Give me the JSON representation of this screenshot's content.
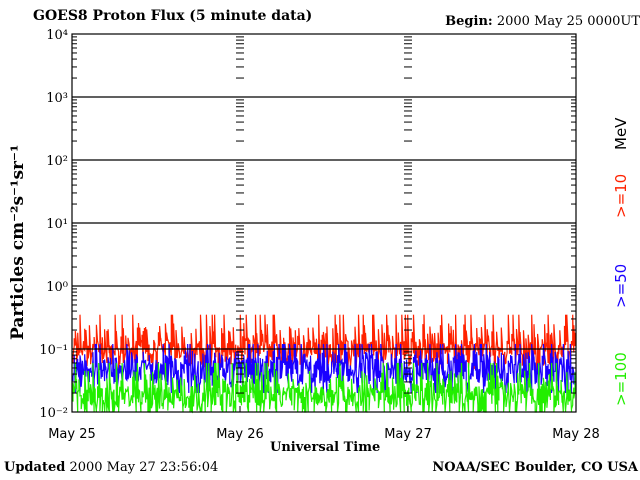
{
  "header": {
    "title": "GOES8 Proton Flux (5 minute data)",
    "begin_label": "Begin:",
    "begin_value": "2000 May 25 0000UT"
  },
  "footer": {
    "updated_label": "Updated",
    "updated_value": "2000 May 27 23:56:04",
    "credit": "NOAA/SEC Boulder, CO USA"
  },
  "chart_data": {
    "type": "line",
    "title": "GOES8 Proton Flux (5 minute data)",
    "xlabel": "Universal Time",
    "ylabel": "Particles cm⁻²s⁻¹sr⁻¹",
    "yscale": "log",
    "ylim": [
      0.01,
      10000
    ],
    "y_ticks": [
      "10⁻²",
      "10⁻¹",
      "10⁰",
      "10¹",
      "10²",
      "10³",
      "10⁴"
    ],
    "y_tick_values": [
      0.01,
      0.1,
      1,
      10,
      100,
      1000,
      10000
    ],
    "x_ticks": [
      "May 25",
      "May 26",
      "May 27",
      "May 28"
    ],
    "xlim": [
      "2000-05-25",
      "2000-05-28"
    ],
    "grid": true,
    "legend_unit": "MeV",
    "series": [
      {
        "name": ">=10",
        "color": "#ff2200",
        "baseline": 0.1,
        "spread": [
          0.06,
          0.35
        ]
      },
      {
        "name": ">=50",
        "color": "#1a00ff",
        "baseline": 0.045,
        "spread": [
          0.02,
          0.12
        ]
      },
      {
        "name": ">=100",
        "color": "#22ee00",
        "baseline": 0.018,
        "spread": [
          0.01,
          0.06
        ]
      }
    ]
  }
}
